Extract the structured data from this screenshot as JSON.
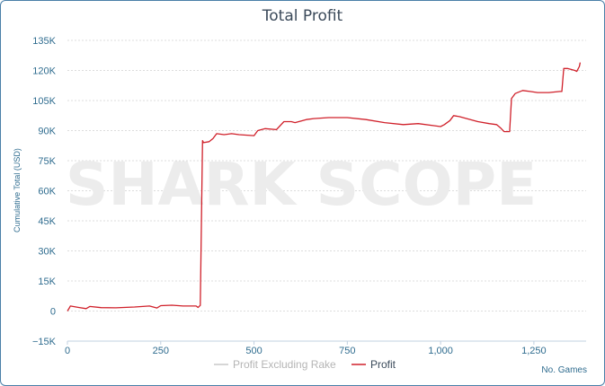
{
  "chart_data": {
    "type": "line",
    "title": "Total Profit",
    "ylabel": "Cumulative Total (USD)",
    "xlabel": "No. Games",
    "watermark": "SHARK SCOPE",
    "xlim": [
      0,
      1390
    ],
    "ylim": [
      -15000,
      135000
    ],
    "x_ticks": [
      0,
      250,
      500,
      750,
      1000,
      1250
    ],
    "x_tick_labels": [
      "0",
      "250",
      "500",
      "750",
      "1,000",
      "1,250"
    ],
    "y_ticks": [
      -15000,
      0,
      15000,
      30000,
      45000,
      60000,
      75000,
      90000,
      105000,
      120000,
      135000
    ],
    "y_tick_labels": [
      "−15K",
      "0",
      "15K",
      "30K",
      "45K",
      "60K",
      "75K",
      "90K",
      "105K",
      "120K",
      "135K"
    ],
    "grid": true,
    "legend": "bottom-center",
    "colors": {
      "profit": "#d0202a",
      "profit_excluding_rake": "#c8c8c8",
      "axis_text": "#2f6c8f",
      "watermark": "#ececec"
    },
    "series": [
      {
        "name": "Profit Excluding Rake",
        "x": [],
        "y": []
      },
      {
        "name": "Profit",
        "x": [
          0,
          5,
          8,
          30,
          50,
          60,
          90,
          130,
          180,
          220,
          240,
          250,
          280,
          310,
          345,
          350,
          356,
          362,
          365,
          380,
          390,
          400,
          420,
          440,
          460,
          500,
          510,
          530,
          560,
          580,
          600,
          610,
          640,
          660,
          700,
          720,
          750,
          800,
          850,
          900,
          940,
          980,
          1000,
          1010,
          1025,
          1035,
          1050,
          1080,
          1100,
          1130,
          1150,
          1160,
          1170,
          1180,
          1185,
          1190,
          1200,
          1220,
          1240,
          1260,
          1290,
          1320,
          1325,
          1330,
          1340,
          1350,
          1360,
          1365,
          1372,
          1374
        ],
        "y": [
          0,
          1500,
          2500,
          1800,
          1200,
          2300,
          1700,
          1600,
          2000,
          2500,
          1500,
          2700,
          2900,
          2500,
          2500,
          1800,
          2800,
          85000,
          84000,
          84500,
          86000,
          88500,
          88000,
          88500,
          88000,
          87500,
          90000,
          91000,
          90500,
          94500,
          94500,
          94000,
          95500,
          96000,
          96500,
          96500,
          96500,
          95500,
          94000,
          93000,
          93500,
          92500,
          92000,
          93000,
          95000,
          97500,
          97000,
          95500,
          94500,
          93500,
          93000,
          91500,
          89500,
          89500,
          89500,
          106000,
          108500,
          110000,
          109500,
          109000,
          109000,
          109500,
          109500,
          121000,
          121000,
          120500,
          120000,
          119500,
          122000,
          124000
        ]
      }
    ]
  },
  "legend": {
    "item_1": "Profit Excluding Rake",
    "item_2": "Profit"
  }
}
